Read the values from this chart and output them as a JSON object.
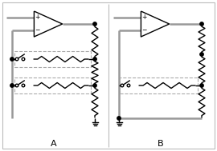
{
  "bg_color": "#ffffff",
  "line_color": "#000000",
  "gray_color": "#999999",
  "lw_main": 1.0,
  "lw_thick": 1.8,
  "label_A": "A",
  "label_B": "B",
  "fig_width": 2.7,
  "fig_height": 1.89,
  "border_color": "#aaaaaa"
}
